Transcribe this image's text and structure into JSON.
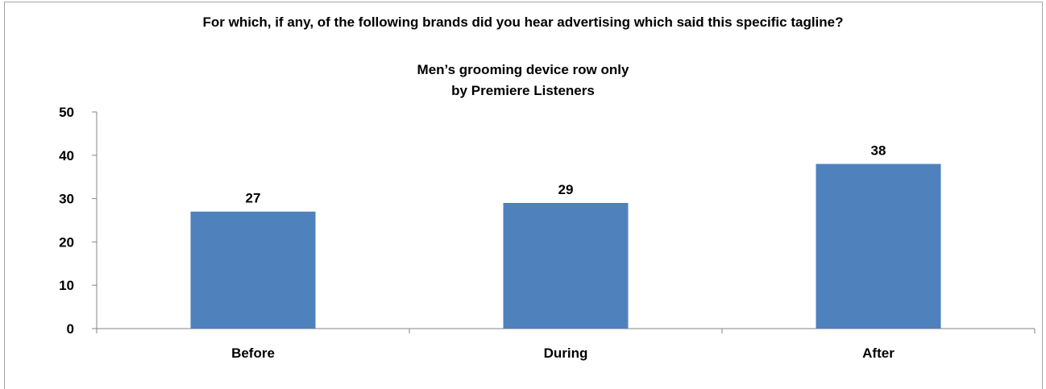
{
  "chart_data": {
    "type": "bar",
    "title": "For which, if any, of the following brands did you hear advertising which said this specific tagline?",
    "subtitle": [
      "Men’s grooming device row only",
      "by Premiere Listeners"
    ],
    "categories": [
      "Before",
      "During",
      "After"
    ],
    "values": [
      27,
      29,
      38
    ],
    "data_labels": [
      "27",
      "29",
      "38"
    ],
    "ylim": [
      0,
      50
    ],
    "yticks": [
      "0",
      "10",
      "20",
      "30",
      "40",
      "50"
    ],
    "bar_color": "#4f81bd",
    "grid": false,
    "legend": "none"
  }
}
